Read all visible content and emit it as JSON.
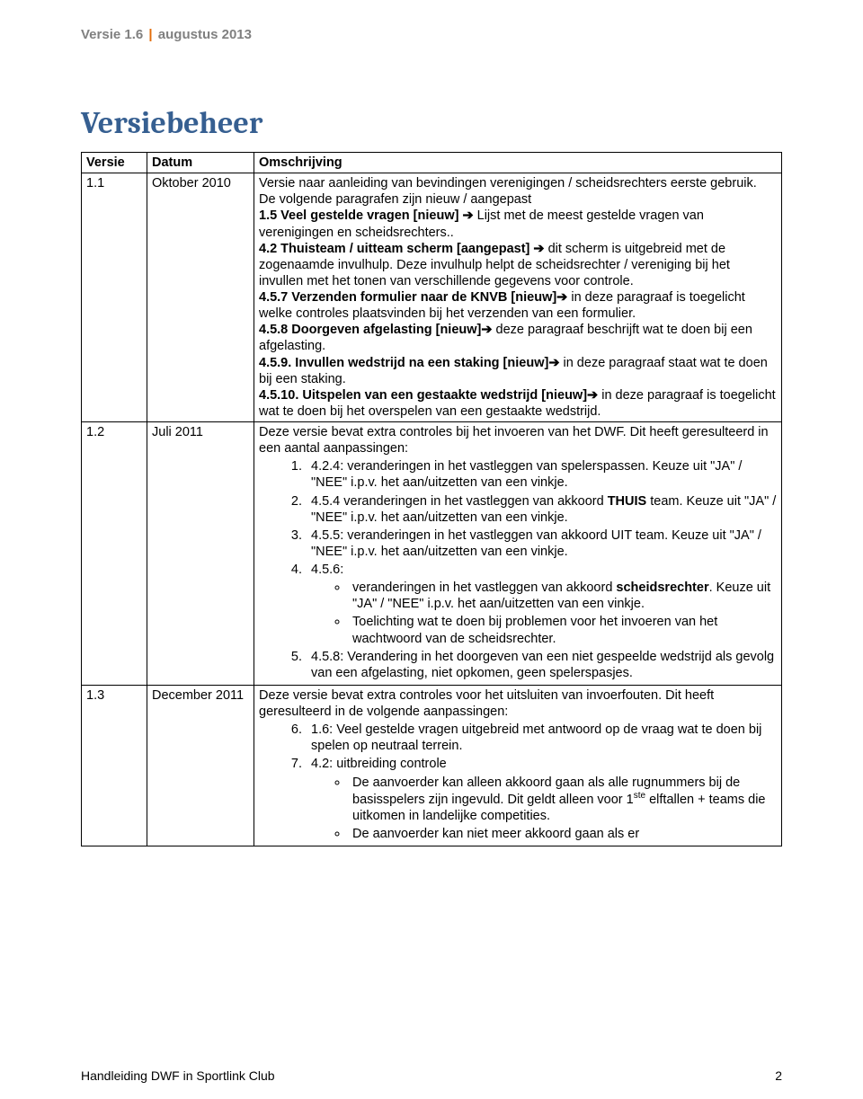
{
  "header": {
    "left": "Versie 1.6",
    "right": "augustus 2013"
  },
  "title": "Versiebeheer",
  "columns": {
    "c1": "Versie",
    "c2": "Datum",
    "c3": "Omschrijving"
  },
  "rows": [
    {
      "versie": "1.1",
      "datum": "Oktober 2010"
    },
    {
      "versie": "1.2",
      "datum": "Juli 2011"
    },
    {
      "versie": "1.3",
      "datum": "December 2011"
    }
  ],
  "r1": {
    "intro": "Versie naar aanleiding van bevindingen verenigingen / scheidsrechters eerste gebruik. De volgende paragrafen zijn nieuw / aangepast",
    "p15a": "1.5 Veel gestelde vragen [nieuw] ",
    "p15b": " Lijst met de meest gestelde vragen van verenigingen en scheidsrechters..",
    "p42a": "4.2 Thuisteam / uitteam scherm [aangepast] ",
    "p42b": " dit scherm is uitgebreid met de zogenaamde invulhulp. Deze invulhulp helpt de scheidsrechter / vereniging bij het invullen met het tonen van verschillende gegevens voor controle.",
    "p457a": "4.5.7 Verzenden formulier naar de KNVB [nieuw]",
    "p457b": " in deze paragraaf is toegelicht welke controles plaatsvinden bij het verzenden van een formulier.",
    "p458a": "4.5.8 Doorgeven afgelasting [nieuw]",
    "p458b": " deze paragraaf beschrijft wat te doen bij een afgelasting.",
    "p459a": "4.5.9. Invullen wedstrijd na een staking [nieuw]",
    "p459b": " in deze paragraaf staat wat te doen bij een staking.",
    "p4510a": "4.5.10. Uitspelen van een gestaakte wedstrijd [nieuw]",
    "p4510b": " in deze paragraaf is toegelicht wat te doen bij het overspelen van een gestaakte wedstrijd."
  },
  "r2": {
    "intro": "Deze versie bevat extra controles bij het invoeren van het DWF. Dit heeft geresulteerd in een aantal aanpassingen:",
    "li1": "4.2.4: veranderingen in het vastleggen van spelerspassen. Keuze uit \"JA\" / \"NEE\" i.p.v. het aan/uitzetten van een vinkje.",
    "li2a": "4.5.4 veranderingen in het vastleggen van akkoord ",
    "li2b": "THUIS",
    "li2c": " team. Keuze uit \"JA\" / \"NEE\" i.p.v. het aan/uitzetten van een vinkje.",
    "li3": "4.5.5: veranderingen in het vastleggen van akkoord UIT team. Keuze uit \"JA\" / \"NEE\" i.p.v. het aan/uitzetten van een vinkje.",
    "li4": "4.5.6:",
    "li4s1a": "veranderingen in het vastleggen van akkoord ",
    "li4s1b": "scheidsrechter",
    "li4s1c": ". Keuze uit \"JA\" / \"NEE\" i.p.v. het aan/uitzetten van een vinkje.",
    "li4s2": "Toelichting wat te doen bij problemen voor het invoeren van het wachtwoord van de scheidsrechter.",
    "li5": "4.5.8: Verandering in het doorgeven van een niet gespeelde wedstrijd als gevolg van een afgelasting, niet opkomen, geen spelerspasjes."
  },
  "r3": {
    "intro": "Deze versie bevat extra controles voor het uitsluiten van invoerfouten. Dit heeft geresulteerd in de volgende aanpassingen:",
    "li6": "1.6: Veel gestelde vragen uitgebreid met antwoord op de vraag wat te doen bij spelen op neutraal terrein.",
    "li7": "4.2: uitbreiding controle",
    "li7s1a": "De aanvoerder kan alleen akkoord gaan als alle rugnummers bij de basisspelers zijn ingevuld. Dit geldt alleen voor 1",
    "li7s1sup": "ste",
    "li7s1b": " elftallen + teams die uitkomen in landelijke competities.",
    "li7s2": "De aanvoerder kan niet meer akkoord gaan als er"
  },
  "arrow": "➔",
  "footer": {
    "left": "Handleiding DWF in Sportlink Club",
    "page": "2"
  }
}
